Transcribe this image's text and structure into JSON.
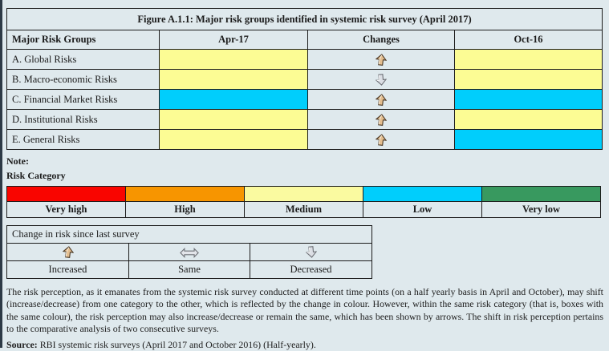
{
  "colors": {
    "page_bg": "#DFE9ED",
    "border": "#1C1C1C",
    "medium_yellow": "#FCFC94",
    "low_cyan": "#00CEFC",
    "very_high_red": "#F90500",
    "high_orange": "#F79500",
    "medium_swatch": "#FAFAA0",
    "very_low_green": "#38995F"
  },
  "figure": {
    "title": "Figure A.1.1: Major risk groups identified in systemic risk survey (April 2017)",
    "columns": [
      "Major Risk Groups",
      "Apr-17",
      "Changes",
      "Oct-16"
    ],
    "rows": [
      {
        "label": "A. Global Risks",
        "apr17": "#FCFC94",
        "change": "up",
        "oct16": "#FCFC94"
      },
      {
        "label": "B. Macro-economic Risks",
        "apr17": "#FCFC94",
        "change": "down",
        "oct16": "#FCFC94"
      },
      {
        "label": "C. Financial Market Risks",
        "apr17": "#00CEFC",
        "change": "up",
        "oct16": "#00CEFC"
      },
      {
        "label": "D. Institutional Risks",
        "apr17": "#FCFC94",
        "change": "up",
        "oct16": "#FCFC94"
      },
      {
        "label": "E. General Risks",
        "apr17": "#FCFC94",
        "change": "up",
        "oct16": "#00CEFC"
      }
    ]
  },
  "note_label": "Note:",
  "risk_category": {
    "heading": "Risk Category",
    "items": [
      {
        "label": "Very high",
        "color": "#F90500"
      },
      {
        "label": "High",
        "color": "#F79500"
      },
      {
        "label": "Medium",
        "color": "#FAFAA0"
      },
      {
        "label": "Low",
        "color": "#00CEFC"
      },
      {
        "label": "Very low",
        "color": "#38995F"
      }
    ]
  },
  "change_legend": {
    "title": "Change in risk since last survey",
    "items": [
      {
        "arrow": "up",
        "label": "Increased"
      },
      {
        "arrow": "same",
        "label": "Same"
      },
      {
        "arrow": "down",
        "label": "Decreased"
      }
    ]
  },
  "footer": {
    "paragraph": "The risk perception, as it emanates from the systemic risk survey conducted at different time points (on a half yearly basis in April and October), may shift (increase/decrease) from one category to the other, which is reflected by the change in colour. However, within the same risk category (that is, boxes with the same colour), the risk perception may also increase/decrease or remain the same, which has been shown by arrows. The shift in risk perception pertains to the comparative analysis of two consecutive surveys.",
    "source_label": "Source:",
    "source_text": " RBI systemic risk surveys (April 2017 and October 2016) (Half-yearly)."
  }
}
